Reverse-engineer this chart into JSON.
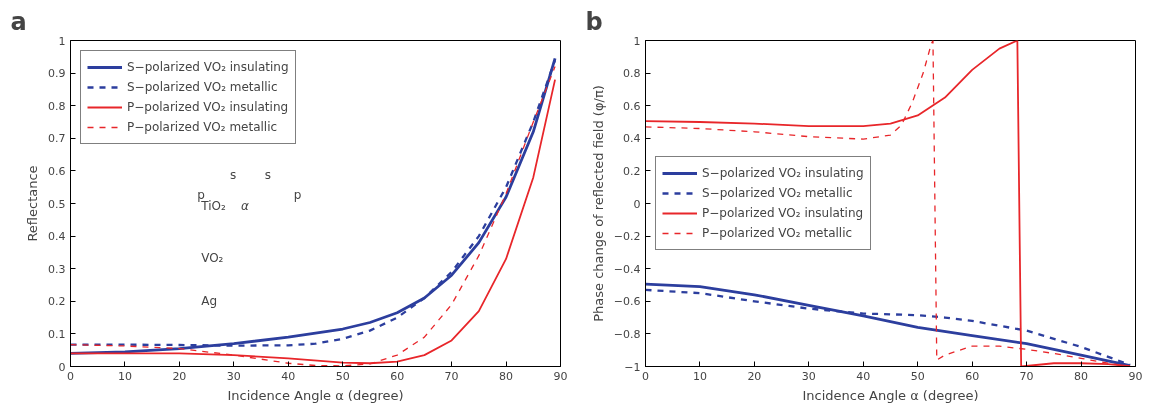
{
  "chart_data": [
    {
      "type": "line",
      "title": "a",
      "xlabel": "Incidence Angle α (degree)",
      "ylabel": "Reflectance",
      "xlim": [
        0,
        90
      ],
      "ylim": [
        0,
        1
      ],
      "xticks": [
        0,
        10,
        20,
        30,
        40,
        50,
        60,
        70,
        80,
        90
      ],
      "yticks": [
        0,
        0.1,
        0.2,
        0.3,
        0.4,
        0.5,
        0.6,
        0.7,
        0.8,
        0.9,
        1
      ],
      "grid": false,
      "legend": "top left",
      "annotations": [
        "TiO₂",
        "VO₂",
        "Ag",
        "s",
        "s",
        "p",
        "p",
        "α"
      ],
      "series": [
        {
          "name": "S−polarized VO₂ insulating",
          "color": "#2c3e9e",
          "line_style": "solid",
          "x": [
            0,
            10,
            20,
            30,
            40,
            50,
            55,
            60,
            65,
            70,
            75,
            80,
            85,
            89
          ],
          "values": [
            0.04,
            0.045,
            0.055,
            0.07,
            0.09,
            0.115,
            0.135,
            0.165,
            0.21,
            0.28,
            0.38,
            0.52,
            0.72,
            0.945
          ]
        },
        {
          "name": "S−polarized VO₂ metallic",
          "color": "#2c3e9e",
          "line_style": "dashed",
          "x": [
            0,
            10,
            20,
            30,
            40,
            45,
            50,
            55,
            60,
            65,
            70,
            75,
            80,
            85,
            89
          ],
          "values": [
            0.067,
            0.067,
            0.066,
            0.064,
            0.065,
            0.07,
            0.085,
            0.11,
            0.15,
            0.21,
            0.29,
            0.4,
            0.55,
            0.75,
            0.94
          ]
        },
        {
          "name": "P−polarized VO₂ insulating",
          "color": "#e8262a",
          "line_style": "solid",
          "x": [
            0,
            10,
            20,
            30,
            40,
            50,
            55,
            60,
            65,
            70,
            75,
            80,
            85,
            89
          ],
          "values": [
            0.04,
            0.04,
            0.04,
            0.035,
            0.025,
            0.012,
            0.01,
            0.015,
            0.035,
            0.08,
            0.17,
            0.33,
            0.58,
            0.88
          ]
        },
        {
          "name": "P−polarized VO₂ metallic",
          "color": "#e8262a",
          "line_style": "dashed",
          "x": [
            0,
            10,
            20,
            30,
            40,
            45,
            50,
            55,
            60,
            65,
            70,
            75,
            80,
            85,
            89
          ],
          "values": [
            0.067,
            0.063,
            0.055,
            0.035,
            0.01,
            0.003,
            0.002,
            0.008,
            0.035,
            0.09,
            0.19,
            0.34,
            0.53,
            0.75,
            0.92
          ]
        }
      ]
    },
    {
      "type": "line",
      "title": "b",
      "xlabel": "Incidence Angle α (degree)",
      "ylabel": "Phase change of reflected field (φ/π)",
      "xlim": [
        0,
        90
      ],
      "ylim": [
        -1,
        1
      ],
      "xticks": [
        0,
        10,
        20,
        30,
        40,
        50,
        60,
        70,
        80,
        90
      ],
      "yticks": [
        {
          "value": -1,
          "label": "−1"
        },
        {
          "value": -0.8,
          "label": "−0.8"
        },
        {
          "value": -0.6,
          "label": "−0.6"
        },
        {
          "value": -0.4,
          "label": "−0.4"
        },
        {
          "value": -0.2,
          "label": "−0.2"
        },
        0,
        0.2,
        0.4,
        0.6,
        0.8,
        1
      ],
      "grid": false,
      "legend": "left",
      "series": [
        {
          "name": "S−polarized VO₂ insulating",
          "color": "#2c3e9e",
          "line_style": "solid",
          "x": [
            0,
            10,
            20,
            30,
            40,
            50,
            60,
            70,
            80,
            89
          ],
          "values": [
            -0.495,
            -0.51,
            -0.56,
            -0.625,
            -0.69,
            -0.76,
            -0.81,
            -0.86,
            -0.93,
            -0.995
          ]
        },
        {
          "name": "S−polarized VO₂ metallic",
          "color": "#2c3e9e",
          "line_style": "dashed",
          "x": [
            0,
            10,
            20,
            30,
            40,
            50,
            55,
            60,
            70,
            80,
            89
          ],
          "values": [
            -0.53,
            -0.55,
            -0.6,
            -0.645,
            -0.675,
            -0.685,
            -0.7,
            -0.72,
            -0.78,
            -0.88,
            -0.99
          ]
        },
        {
          "name": "P−polarized VO₂ insulating",
          "color": "#e8262a",
          "line_style": "solid",
          "x": [
            0,
            10,
            20,
            30,
            40,
            45,
            50,
            55,
            60,
            65,
            68.3,
            69,
            75,
            80,
            85,
            89
          ],
          "values": [
            0.505,
            0.5,
            0.49,
            0.475,
            0.475,
            0.49,
            0.54,
            0.65,
            0.82,
            0.95,
            1.0,
            -1.0,
            -0.98,
            -0.98,
            -0.985,
            -0.998
          ]
        },
        {
          "name": "P−polarized VO₂ metallic",
          "color": "#e8262a",
          "line_style": "dashed",
          "x": [
            0,
            10,
            20,
            30,
            40,
            45,
            47,
            49,
            51,
            52.5,
            52.8,
            53.5,
            55,
            60,
            65,
            70,
            75,
            80,
            85,
            89
          ],
          "values": [
            0.47,
            0.46,
            0.44,
            0.41,
            0.395,
            0.42,
            0.48,
            0.62,
            0.8,
            0.98,
            1.0,
            -0.96,
            -0.93,
            -0.875,
            -0.875,
            -0.895,
            -0.92,
            -0.95,
            -0.98,
            -1.0
          ]
        }
      ]
    }
  ]
}
